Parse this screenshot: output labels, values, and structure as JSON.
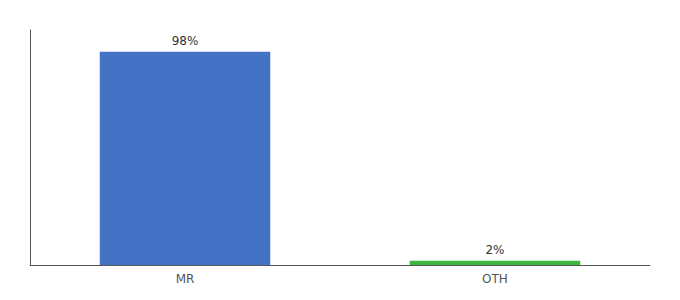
{
  "chart_data": {
    "type": "bar",
    "categories": [
      "MR",
      "OTH"
    ],
    "values": [
      98,
      2
    ],
    "value_labels": [
      "98%",
      "2%"
    ],
    "colors": [
      "#4472c4",
      "#3cb83c"
    ],
    "ylim": [
      0,
      108
    ],
    "yticks": [],
    "grid": false,
    "data_labels": true,
    "tick_labels": "x"
  }
}
